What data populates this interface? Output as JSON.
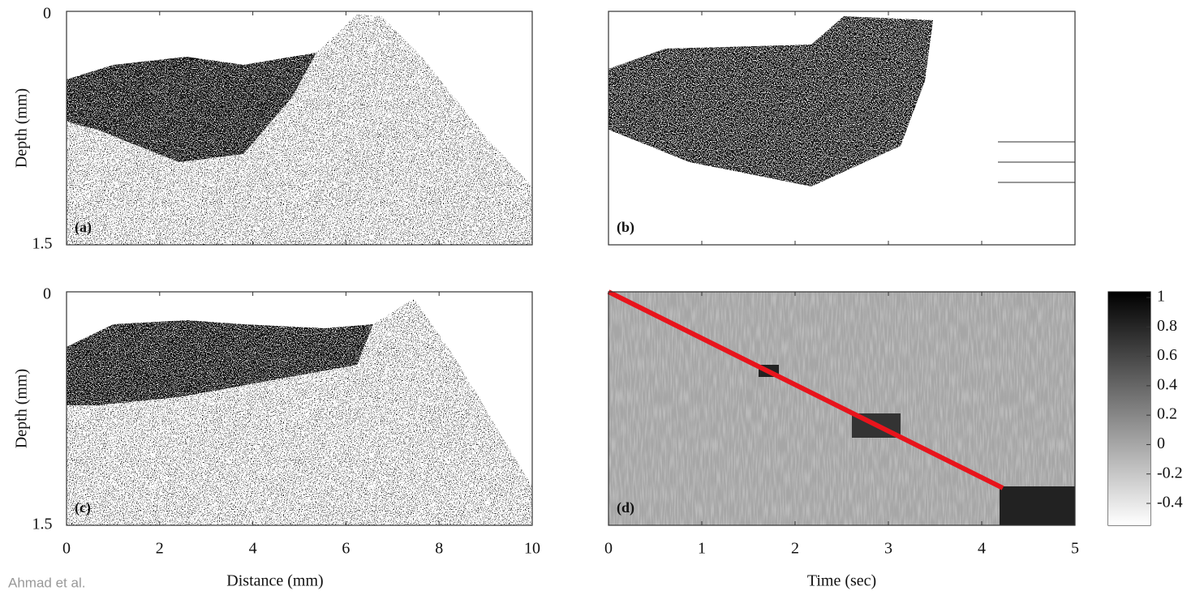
{
  "panels": [
    {
      "label": "(a)",
      "y_label": "Depth (mm)",
      "y_ticks": [
        0,
        1.5
      ]
    },
    {
      "label": "(b)"
    },
    {
      "label": "(c)",
      "y_label": "Depth (mm)",
      "y_ticks": [
        0,
        1.5
      ],
      "x_label": "Distance (mm)",
      "x_ticks": [
        0,
        2,
        4,
        6,
        8,
        10
      ]
    },
    {
      "label": "(d)",
      "x_label": "Time (sec)",
      "x_ticks": [
        0,
        1,
        2,
        3,
        4,
        5
      ]
    }
  ],
  "colorbar": {
    "ticks": [
      1,
      0.8,
      0.6,
      0.4,
      0.2,
      0,
      -0.2,
      -0.4
    ]
  },
  "credit": "Ahmad et al."
}
